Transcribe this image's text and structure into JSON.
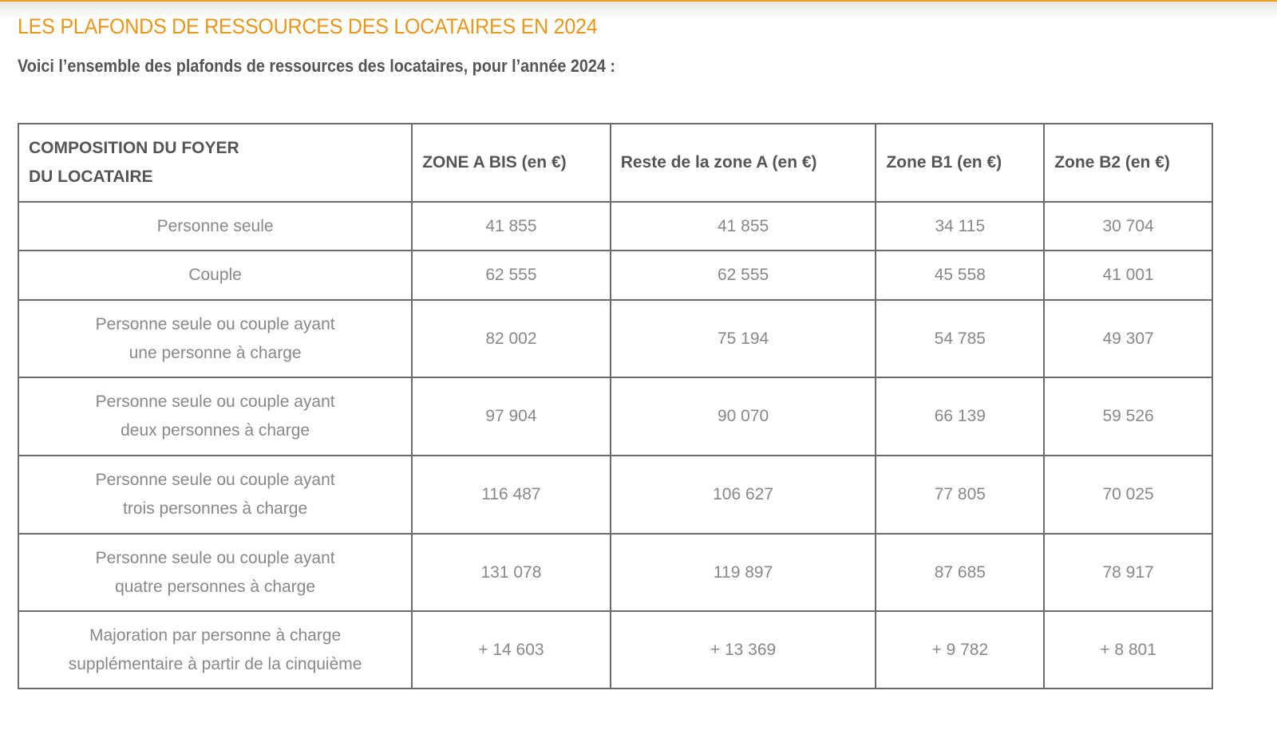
{
  "title": "LES PLAFONDS DE RESSOURCES DES LOCATAIRES EN 2024",
  "subtitle": "Voici l’ensemble des plafonds de ressources des locataires, pour l’année 2024 :",
  "table": {
    "headers": [
      "COMPOSITION DU FOYER",
      "DU LOCATAIRE",
      "ZONE A BIS (en €)",
      "Reste de la zone A (en €)",
      "Zone B1 (en €)",
      "Zone B2 (en €)"
    ],
    "rows": [
      {
        "l1": "Personne seule",
        "l2": "",
        "v": [
          "41 855",
          "41 855",
          "34 115",
          "30 704"
        ]
      },
      {
        "l1": "Couple",
        "l2": "",
        "v": [
          "62 555",
          "62 555",
          "45 558",
          "41 001"
        ]
      },
      {
        "l1": "Personne seule ou couple ayant",
        "l2": "une personne à charge",
        "v": [
          "82 002",
          "75 194",
          "54 785",
          "49 307"
        ]
      },
      {
        "l1": "Personne seule ou couple ayant",
        "l2": "deux personnes à charge",
        "v": [
          "97 904",
          "90 070",
          "66 139",
          "59 526"
        ]
      },
      {
        "l1": "Personne seule ou couple ayant",
        "l2": "trois personnes à charge",
        "v": [
          "116 487",
          "106 627",
          "77 805",
          "70 025"
        ]
      },
      {
        "l1": "Personne seule ou couple ayant",
        "l2": "quatre personnes à charge",
        "v": [
          "131 078",
          "119 897",
          "87 685",
          "78 917"
        ]
      },
      {
        "l1": "Majoration par personne à charge",
        "l2": "supplémentaire à partir de la cinquième",
        "v": [
          "+ 14 603",
          "+ 13 369",
          "+ 9 782",
          "+ 8 801"
        ]
      }
    ]
  }
}
